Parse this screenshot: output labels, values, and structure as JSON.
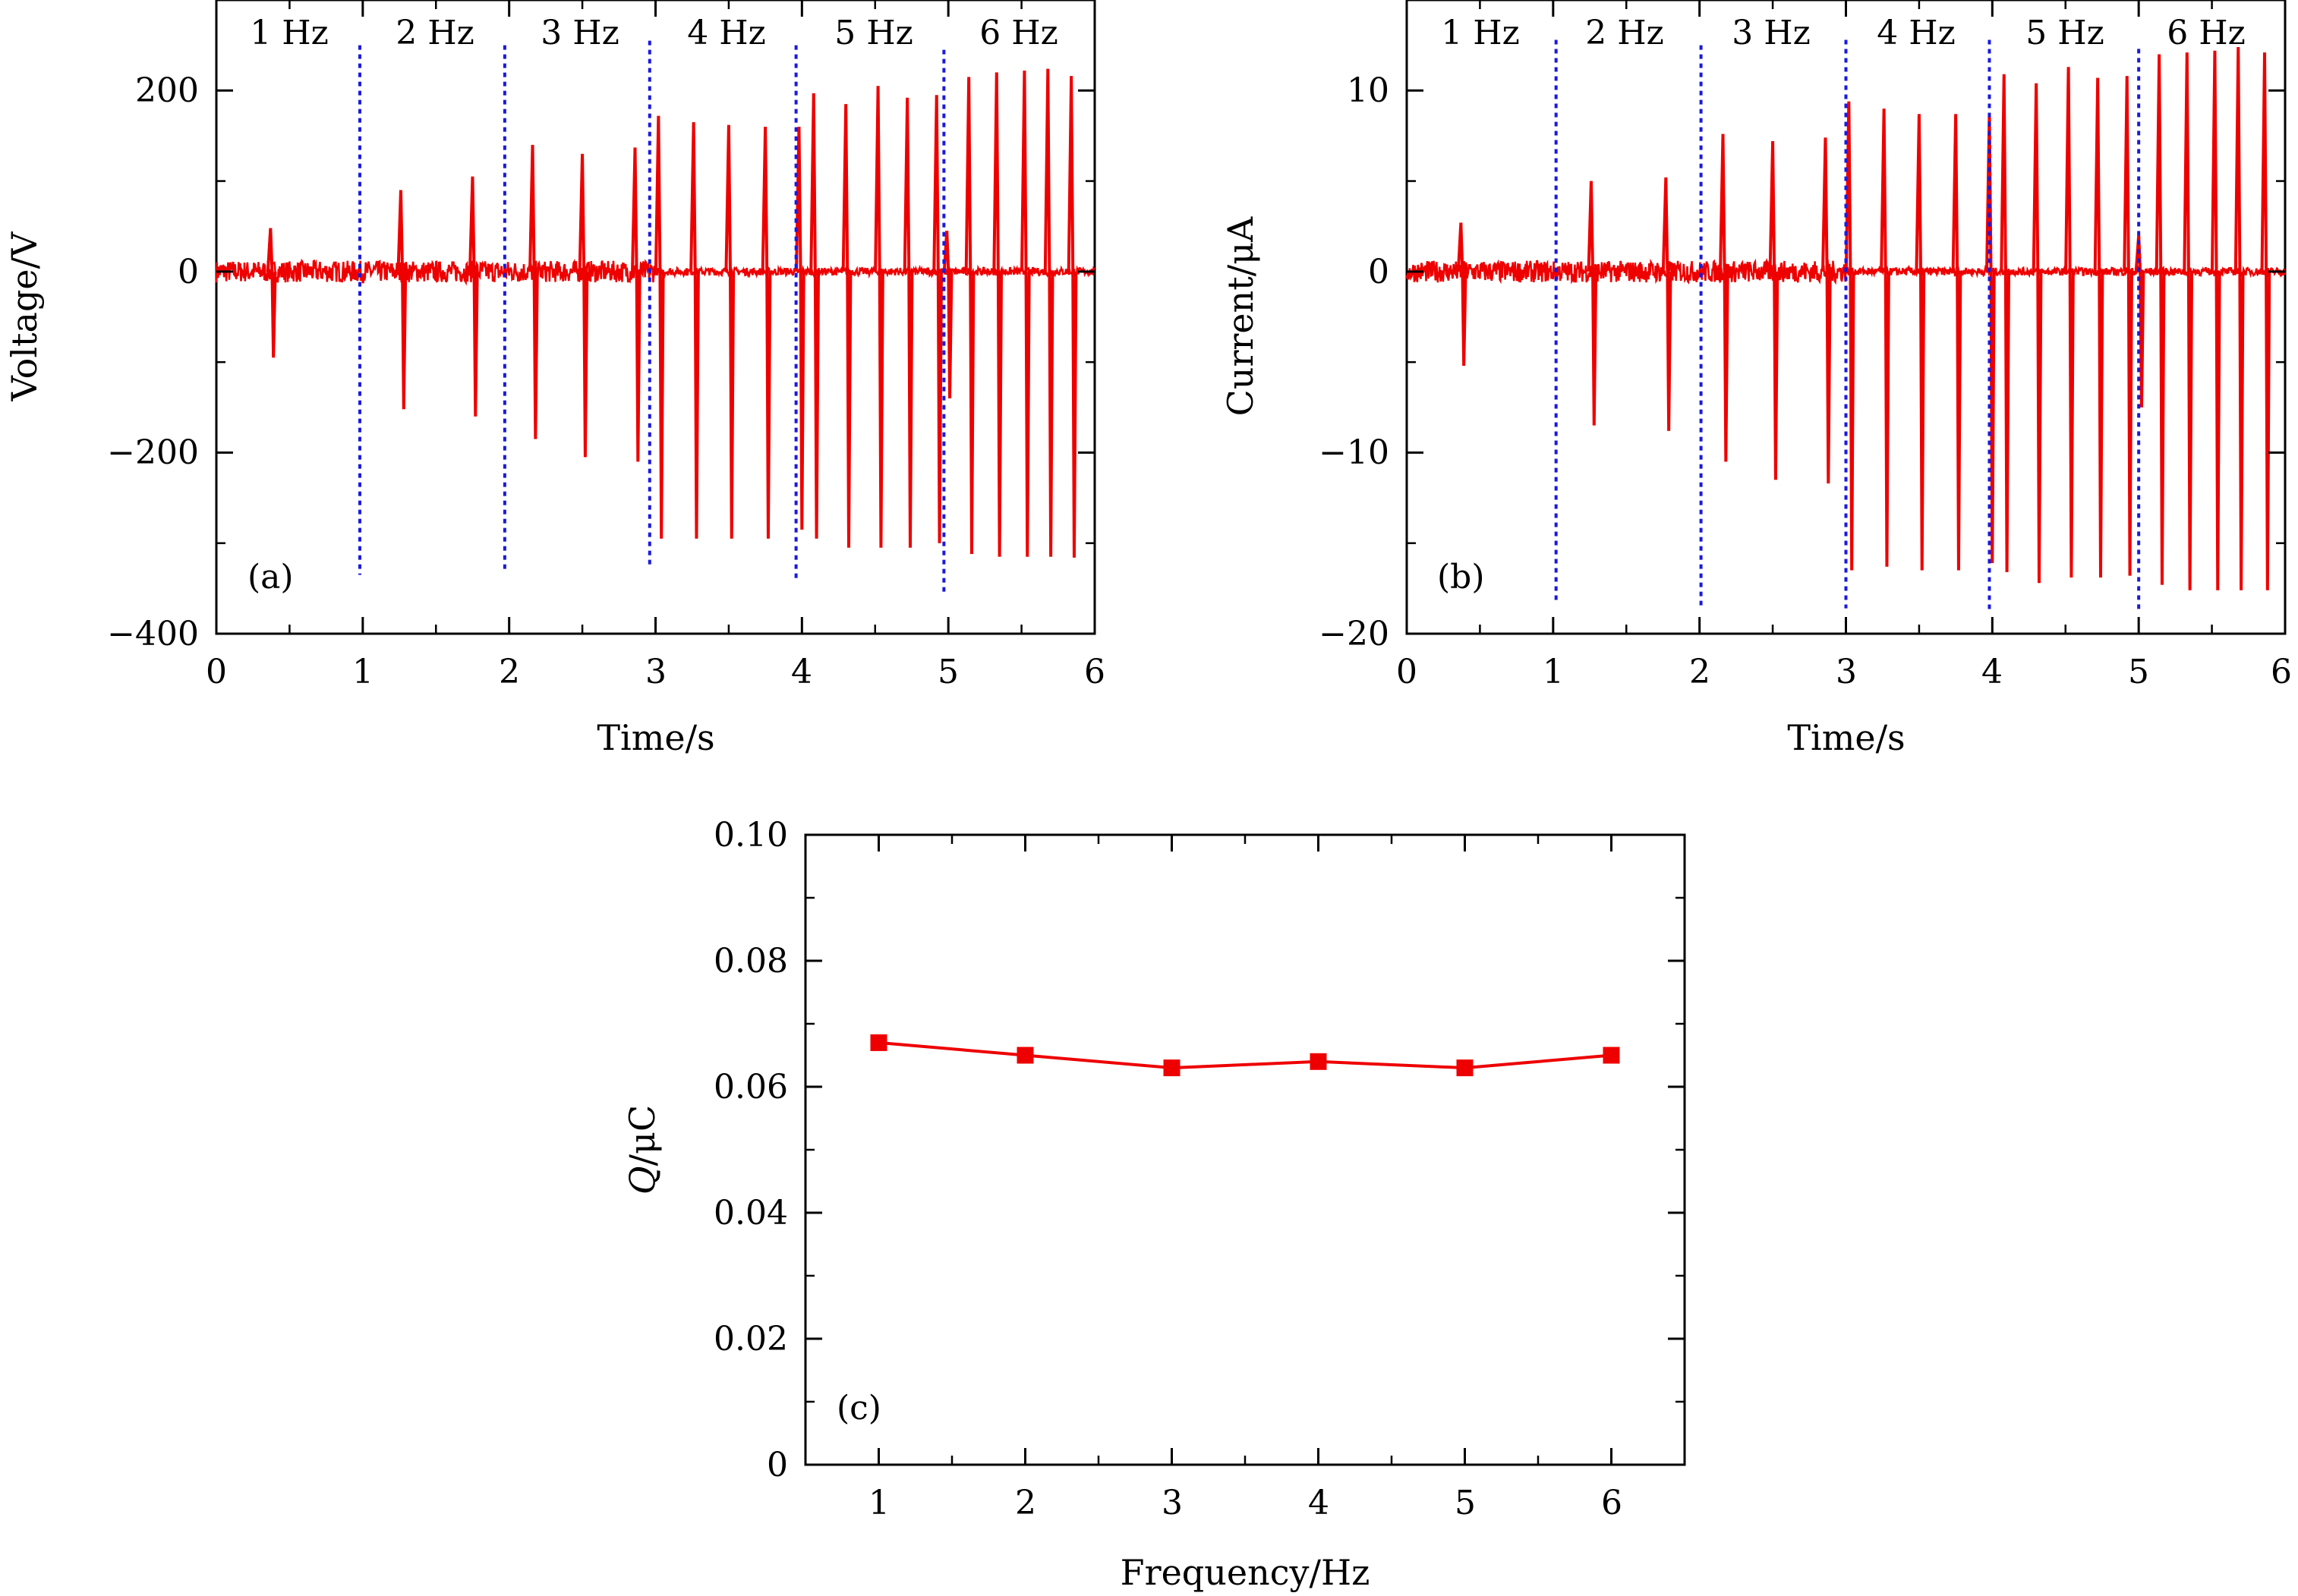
{
  "colors": {
    "signal": "#ee0000",
    "divider": "#1a1adc",
    "axis": "#000000"
  },
  "chart_data": [
    {
      "id": "a",
      "type": "line",
      "panel_label": "(a)",
      "xlabel": "Time/s",
      "ylabel": "Voltage/V",
      "xlim": [
        0,
        6
      ],
      "ylim": [
        -400,
        300
      ],
      "xticks": [
        0,
        1,
        2,
        3,
        4,
        5,
        6
      ],
      "xtick_labels": [
        "0",
        "1",
        "2",
        "3",
        "4",
        "5",
        "6"
      ],
      "yticks": [
        -400,
        -200,
        0,
        200
      ],
      "ytick_labels": [
        "−400",
        "−200",
        "0",
        "200"
      ],
      "band_labels": [
        "1 Hz",
        "2 Hz",
        "3 Hz",
        "4 Hz",
        "5 Hz",
        "6 Hz"
      ],
      "band_label_x": [
        0.5,
        1.5,
        2.5,
        3.5,
        4.5,
        5.5
      ],
      "dividers": [
        {
          "x": 0.98,
          "y_top": 250,
          "y_bottom": -335
        },
        {
          "x": 1.97,
          "y_top": 250,
          "y_bottom": -330
        },
        {
          "x": 2.96,
          "y_top": 255,
          "y_bottom": -325
        },
        {
          "x": 3.96,
          "y_top": 250,
          "y_bottom": -340
        },
        {
          "x": 4.97,
          "y_top": 245,
          "y_bottom": -355
        }
      ],
      "noise_amplitude": 12,
      "peaks": [
        {
          "t": 0.37,
          "up": 48,
          "down": -95
        },
        {
          "t": 1.26,
          "up": 90,
          "down": -152
        },
        {
          "t": 1.75,
          "up": 105,
          "down": -160
        },
        {
          "t": 2.16,
          "up": 140,
          "down": -185
        },
        {
          "t": 2.5,
          "up": 130,
          "down": -205
        },
        {
          "t": 2.86,
          "up": 137,
          "down": -210
        },
        {
          "t": 3.02,
          "up": 172,
          "down": -295
        },
        {
          "t": 3.26,
          "up": 165,
          "down": -295
        },
        {
          "t": 3.5,
          "up": 162,
          "down": -295
        },
        {
          "t": 3.75,
          "up": 160,
          "down": -295
        },
        {
          "t": 3.98,
          "up": 160,
          "down": -285
        },
        {
          "t": 4.08,
          "up": 197,
          "down": -295
        },
        {
          "t": 4.3,
          "up": 185,
          "down": -305
        },
        {
          "t": 4.52,
          "up": 205,
          "down": -305
        },
        {
          "t": 4.72,
          "up": 192,
          "down": -305
        },
        {
          "t": 4.92,
          "up": 195,
          "down": -300
        },
        {
          "t": 4.99,
          "up": 45,
          "down": -140
        },
        {
          "t": 5.14,
          "up": 215,
          "down": -312
        },
        {
          "t": 5.33,
          "up": 220,
          "down": -315
        },
        {
          "t": 5.52,
          "up": 222,
          "down": -315
        },
        {
          "t": 5.68,
          "up": 224,
          "down": -315
        },
        {
          "t": 5.84,
          "up": 216,
          "down": -316
        }
      ]
    },
    {
      "id": "b",
      "type": "line",
      "panel_label": "(b)",
      "xlabel": "Time/s",
      "ylabel": "Current/μA",
      "xlim": [
        0,
        6
      ],
      "ylim": [
        -20,
        15
      ],
      "xticks": [
        0,
        1,
        2,
        3,
        4,
        5,
        6
      ],
      "xtick_labels": [
        "0",
        "1",
        "2",
        "3",
        "4",
        "5",
        "6"
      ],
      "yticks": [
        -20,
        -10,
        0,
        10
      ],
      "ytick_labels": [
        "−20",
        "−10",
        "0",
        "10"
      ],
      "band_labels": [
        "1 Hz",
        "2 Hz",
        "3 Hz",
        "4 Hz",
        "5 Hz",
        "6 Hz"
      ],
      "band_label_x": [
        0.5,
        1.5,
        2.5,
        3.5,
        4.5,
        5.5
      ],
      "dividers": [
        {
          "x": 1.02,
          "y_top": 12.8,
          "y_bottom": -18.3
        },
        {
          "x": 2.01,
          "y_top": 12.5,
          "y_bottom": -18.6
        },
        {
          "x": 3.0,
          "y_top": 12.8,
          "y_bottom": -18.6
        },
        {
          "x": 3.98,
          "y_top": 12.8,
          "y_bottom": -18.7
        },
        {
          "x": 5.0,
          "y_top": 12.3,
          "y_bottom": -18.7
        }
      ],
      "noise_amplitude": 0.6,
      "peaks": [
        {
          "t": 0.37,
          "up": 2.7,
          "down": -5.2
        },
        {
          "t": 1.26,
          "up": 5.0,
          "down": -8.5
        },
        {
          "t": 1.77,
          "up": 5.2,
          "down": -8.8
        },
        {
          "t": 2.16,
          "up": 7.6,
          "down": -10.5
        },
        {
          "t": 2.5,
          "up": 7.2,
          "down": -11.5
        },
        {
          "t": 2.86,
          "up": 7.4,
          "down": -11.7
        },
        {
          "t": 3.02,
          "up": 9.4,
          "down": -16.5
        },
        {
          "t": 3.26,
          "up": 9.0,
          "down": -16.3
        },
        {
          "t": 3.5,
          "up": 8.7,
          "down": -16.5
        },
        {
          "t": 3.75,
          "up": 8.7,
          "down": -16.5
        },
        {
          "t": 3.98,
          "up": 8.7,
          "down": -16.1
        },
        {
          "t": 4.08,
          "up": 10.9,
          "down": -16.6
        },
        {
          "t": 4.3,
          "up": 10.4,
          "down": -17.2
        },
        {
          "t": 4.52,
          "up": 11.3,
          "down": -16.9
        },
        {
          "t": 4.72,
          "up": 10.7,
          "down": -16.9
        },
        {
          "t": 4.92,
          "up": 10.8,
          "down": -16.8
        },
        {
          "t": 5.0,
          "up": 2.0,
          "down": -7.5
        },
        {
          "t": 5.14,
          "up": 12.0,
          "down": -17.3
        },
        {
          "t": 5.33,
          "up": 12.1,
          "down": -17.6
        },
        {
          "t": 5.52,
          "up": 12.2,
          "down": -17.6
        },
        {
          "t": 5.68,
          "up": 12.4,
          "down": -17.6
        },
        {
          "t": 5.86,
          "up": 12.1,
          "down": -17.6
        }
      ]
    },
    {
      "id": "c",
      "type": "line",
      "panel_label": "(c)",
      "xlabel": "Frequency/Hz",
      "ylabel_italic": "Q",
      "ylabel_rest": "/μC",
      "xlim": [
        0.5,
        6.5
      ],
      "ylim": [
        0,
        0.1
      ],
      "xticks": [
        1,
        2,
        3,
        4,
        5,
        6
      ],
      "xtick_labels": [
        "1",
        "2",
        "3",
        "4",
        "5",
        "6"
      ],
      "yticks": [
        0,
        0.02,
        0.04,
        0.06,
        0.08,
        0.1
      ],
      "ytick_labels": [
        "0",
        "0.02",
        "0.04",
        "0.06",
        "0.08",
        "0.10"
      ],
      "x": [
        1,
        2,
        3,
        4,
        5,
        6
      ],
      "values": [
        0.067,
        0.065,
        0.063,
        0.064,
        0.063,
        0.065
      ],
      "marker": "square"
    }
  ]
}
